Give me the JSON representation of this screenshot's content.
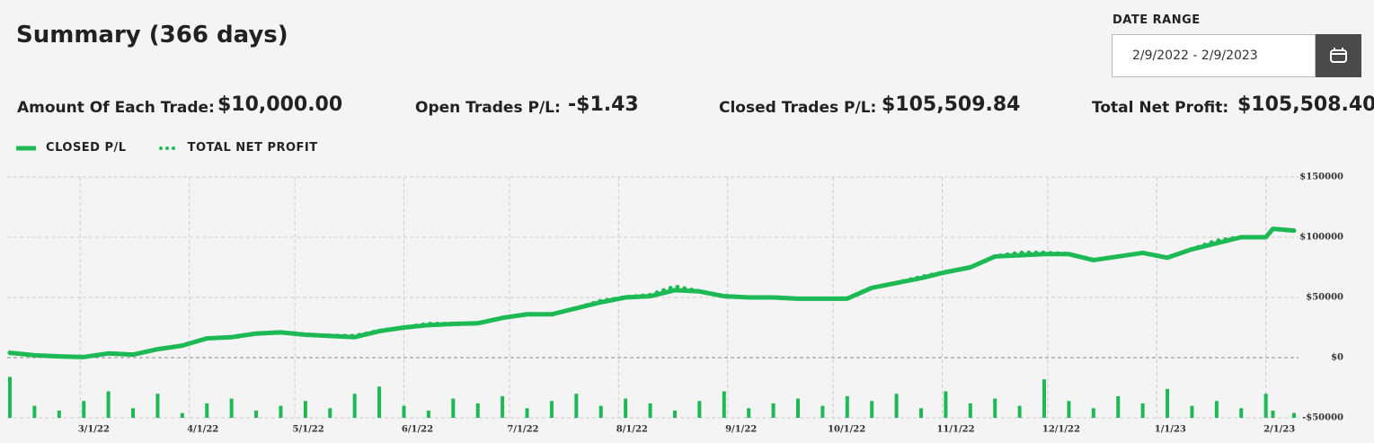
{
  "header": {
    "title": "Summary (366 days)",
    "date_range_label": "DATE RANGE",
    "date_range": "2/9/2022 - 2/9/2023"
  },
  "stats": [
    {
      "label": "Amount Of Each Trade:",
      "value": "$10,000.00"
    },
    {
      "label": "Open Trades P/L:",
      "value": "-$1.43"
    },
    {
      "label": "Closed Trades P/L:",
      "value": "$105,509.84"
    },
    {
      "label": "Total Net Profit:",
      "value": "$105,508.40"
    }
  ],
  "chart_data": {
    "type": "line",
    "grid": true,
    "x": [
      "2022-02-09",
      "2022-02-16",
      "2022-02-23",
      "2022-03-02",
      "2022-03-09",
      "2022-03-16",
      "2022-03-23",
      "2022-03-30",
      "2022-04-06",
      "2022-04-13",
      "2022-04-20",
      "2022-04-27",
      "2022-05-04",
      "2022-05-11",
      "2022-05-18",
      "2022-05-25",
      "2022-06-01",
      "2022-06-08",
      "2022-06-15",
      "2022-06-22",
      "2022-06-29",
      "2022-07-06",
      "2022-07-13",
      "2022-07-20",
      "2022-07-27",
      "2022-08-03",
      "2022-08-10",
      "2022-08-17",
      "2022-08-24",
      "2022-08-31",
      "2022-09-07",
      "2022-09-14",
      "2022-09-21",
      "2022-09-28",
      "2022-10-05",
      "2022-10-12",
      "2022-10-19",
      "2022-10-26",
      "2022-11-02",
      "2022-11-09",
      "2022-11-16",
      "2022-11-23",
      "2022-11-30",
      "2022-12-07",
      "2022-12-14",
      "2022-12-21",
      "2022-12-28",
      "2023-01-04",
      "2023-01-11",
      "2023-01-18",
      "2023-01-25",
      "2023-02-01",
      "2023-02-03",
      "2023-02-09"
    ],
    "series": [
      {
        "name": "CLOSED P/L",
        "color": "#1db954",
        "style": "solid",
        "values": [
          4000,
          2000,
          1000,
          500,
          3500,
          2500,
          7000,
          10000,
          16000,
          17000,
          20000,
          21000,
          19000,
          18000,
          17000,
          22000,
          25000,
          27000,
          28000,
          28500,
          33000,
          36000,
          36000,
          41000,
          46000,
          50000,
          51000,
          56000,
          55000,
          51000,
          50000,
          50000,
          49000,
          49000,
          49000,
          58000,
          62000,
          66000,
          71000,
          75000,
          84000,
          85000,
          86000,
          86000,
          81000,
          84000,
          87000,
          83000,
          90000,
          95000,
          100000,
          100000,
          107000,
          105500
        ]
      },
      {
        "name": "TOTAL NET PROFIT",
        "color": "#1db954",
        "style": "dotted",
        "values": [
          4000,
          2000,
          1000,
          500,
          3500,
          2500,
          7000,
          10000,
          16000,
          17000,
          20000,
          21000,
          19000,
          18000,
          18000,
          22000,
          25000,
          28000,
          28000,
          28500,
          33000,
          36000,
          36000,
          41000,
          47000,
          50000,
          52000,
          59000,
          55000,
          51000,
          50000,
          50000,
          49000,
          49000,
          49000,
          58000,
          62000,
          67000,
          71000,
          75000,
          84000,
          87000,
          87000,
          86000,
          81000,
          84000,
          87000,
          83000,
          90000,
          97000,
          100000,
          100000,
          107000,
          105500
        ]
      }
    ],
    "bars": {
      "color": "#1db954",
      "base": -50000,
      "x": [
        "2022-02-09",
        "2022-02-16",
        "2022-02-23",
        "2022-03-02",
        "2022-03-09",
        "2022-03-16",
        "2022-03-23",
        "2022-03-30",
        "2022-04-06",
        "2022-04-13",
        "2022-04-20",
        "2022-04-27",
        "2022-05-04",
        "2022-05-11",
        "2022-05-18",
        "2022-05-25",
        "2022-06-01",
        "2022-06-08",
        "2022-06-15",
        "2022-06-22",
        "2022-06-29",
        "2022-07-06",
        "2022-07-13",
        "2022-07-20",
        "2022-07-27",
        "2022-08-03",
        "2022-08-10",
        "2022-08-17",
        "2022-08-24",
        "2022-08-31",
        "2022-09-07",
        "2022-09-14",
        "2022-09-21",
        "2022-09-28",
        "2022-10-05",
        "2022-10-12",
        "2022-10-19",
        "2022-10-26",
        "2022-11-02",
        "2022-11-09",
        "2022-11-16",
        "2022-11-23",
        "2022-11-30",
        "2022-12-07",
        "2022-12-14",
        "2022-12-21",
        "2022-12-28",
        "2023-01-04",
        "2023-01-11",
        "2023-01-18",
        "2023-01-25",
        "2023-02-01",
        "2023-02-03",
        "2023-02-09"
      ],
      "values": [
        -16000,
        -40000,
        -44000,
        -36000,
        -28000,
        -42000,
        -30000,
        -46000,
        -38000,
        -34000,
        -44000,
        -40000,
        -36000,
        -42000,
        -30000,
        -24000,
        -40000,
        -44000,
        -34000,
        -38000,
        -32000,
        -42000,
        -36000,
        -30000,
        -40000,
        -34000,
        -38000,
        -44000,
        -36000,
        -28000,
        -42000,
        -38000,
        -34000,
        -40000,
        -32000,
        -36000,
        -30000,
        -42000,
        -28000,
        -38000,
        -34000,
        -40000,
        -18000,
        -36000,
        -42000,
        -32000,
        -38000,
        -26000,
        -40000,
        -36000,
        -42000,
        -30000,
        -44000,
        -46000
      ]
    },
    "xlim": [
      "2022-02-09",
      "2023-02-09"
    ],
    "xticks": [
      {
        "value": "2022-03-01",
        "label": "3/1/22"
      },
      {
        "value": "2022-04-01",
        "label": "4/1/22"
      },
      {
        "value": "2022-05-01",
        "label": "5/1/22"
      },
      {
        "value": "2022-06-01",
        "label": "6/1/22"
      },
      {
        "value": "2022-07-01",
        "label": "7/1/22"
      },
      {
        "value": "2022-08-01",
        "label": "8/1/22"
      },
      {
        "value": "2022-09-01",
        "label": "9/1/22"
      },
      {
        "value": "2022-10-01",
        "label": "10/1/22"
      },
      {
        "value": "2022-11-01",
        "label": "11/1/22"
      },
      {
        "value": "2022-12-01",
        "label": "12/1/22"
      },
      {
        "value": "2023-01-01",
        "label": "1/1/23"
      },
      {
        "value": "2023-02-01",
        "label": "2/1/23"
      }
    ],
    "ylim": [
      -50000,
      150000
    ],
    "yticks": [
      {
        "value": -50000,
        "label": "-$50000"
      },
      {
        "value": 0,
        "label": "$0"
      },
      {
        "value": 50000,
        "label": "$50000"
      },
      {
        "value": 100000,
        "label": "$100000"
      },
      {
        "value": 150000,
        "label": "$150000"
      }
    ]
  }
}
